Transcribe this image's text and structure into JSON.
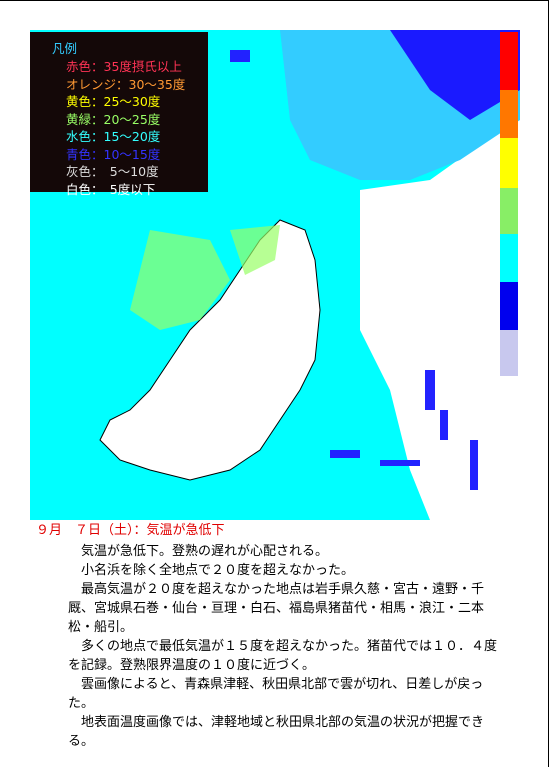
{
  "legend": {
    "title": "凡例",
    "items": [
      {
        "text": "赤色：35度摂氏以上",
        "color": "#ff3355"
      },
      {
        "text": "オレンジ：30～35度",
        "color": "#ff9933"
      },
      {
        "text": "黄色：25～30度",
        "color": "#ffff00"
      },
      {
        "text": "黄緑：20～25度",
        "color": "#99ff66"
      },
      {
        "text": "水色：15～20度",
        "color": "#33ffff"
      },
      {
        "text": "青色：10～15度",
        "color": "#3333ff"
      },
      {
        "text": "灰色：　5～10度",
        "color": "#dddddd"
      },
      {
        "text": "白色：　5度以下",
        "color": "#ffffff"
      }
    ]
  },
  "heading": "９月　７日（土）：気温が急低下",
  "paragraphs": [
    "気温が急低下。登熟の遅れが心配される。",
    "小名浜を除く全地点で２０度を超えなかった。",
    "最高気温が２０度を超えなかった地点は岩手県久慈・宮古・遠野・千厩、宮城県石巻・仙台・亘理・白石、福島県猪苗代・相馬・浪江・二本松・船引。",
    "多くの地点で最低気温が１５度を超えなかった。猪苗代では１０．４度を記録。登熟限界温度の１０度に近づく。",
    "雲画像によると、青森県津軽、秋田県北部で雲が切れ、日差しが戻った。",
    "地表面温度画像では、津軽地域と秋田県北部の気温の状況が把握できる。"
  ]
}
